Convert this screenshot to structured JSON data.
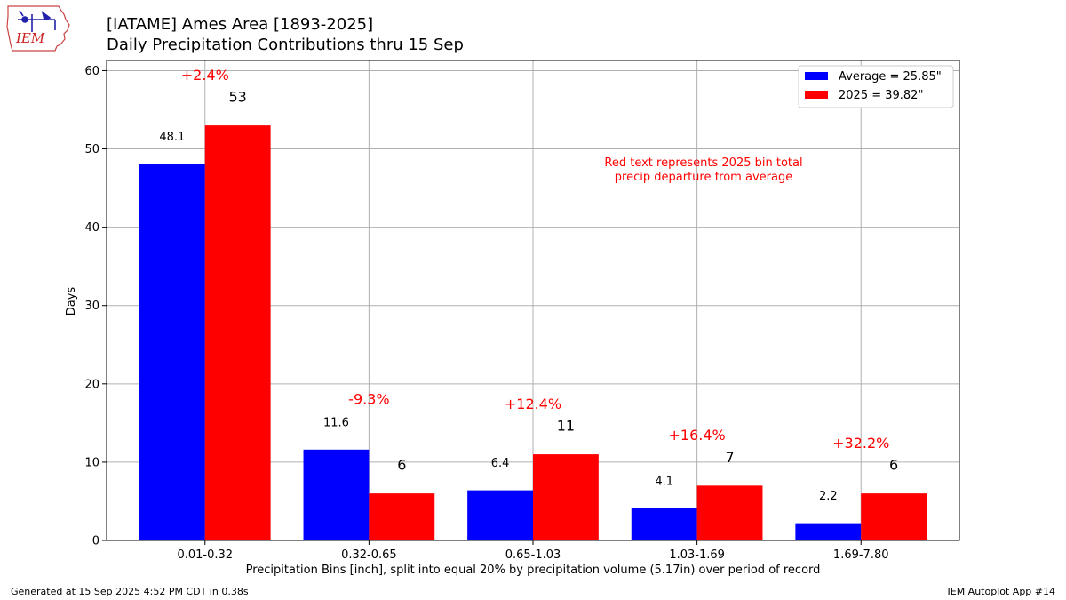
{
  "logo": {
    "text": "IEM"
  },
  "header": {
    "title_line1": "[IATAME] Ames Area [1893-2025]",
    "title_line2": "Daily Precipitation Contributions thru 15 Sep"
  },
  "footer": {
    "generated": "Generated at 15 Sep 2025 4:52 PM CDT in 0.38s",
    "app": "IEM Autoplot App #14"
  },
  "chart_data": {
    "type": "bar",
    "categories": [
      "0.01-0.32",
      "0.32-0.65",
      "0.65-1.03",
      "1.03-1.69",
      "1.69-7.80"
    ],
    "series": [
      {
        "name": "Average = 25.85\"",
        "values": [
          48.1,
          11.6,
          6.4,
          4.1,
          2.2
        ],
        "labels": [
          "48.1",
          "11.6",
          "6.4",
          "4.1",
          "2.2"
        ],
        "color": "#0000ff"
      },
      {
        "name": "2025 = 39.82\"",
        "values": [
          53,
          6,
          11,
          7,
          6
        ],
        "labels": [
          "53",
          "6",
          "11",
          "7",
          "6"
        ],
        "color": "#ff0000"
      }
    ],
    "departures": [
      "+2.4%",
      "-9.3%",
      "+12.4%",
      "+16.4%",
      "+32.2%"
    ],
    "departure_color": "#ff0000",
    "annotation": [
      "Red text represents 2025 bin total",
      "precip departure from average"
    ],
    "xlabel": "Precipitation Bins [inch], split into equal 20% by precipitation volume (5.17in) over period of record",
    "ylabel": "Days",
    "ylim": [
      0,
      61.3
    ],
    "yticks": [
      0,
      10,
      20,
      30,
      40,
      50,
      60
    ],
    "grid": true,
    "legend_position": "top-right"
  }
}
